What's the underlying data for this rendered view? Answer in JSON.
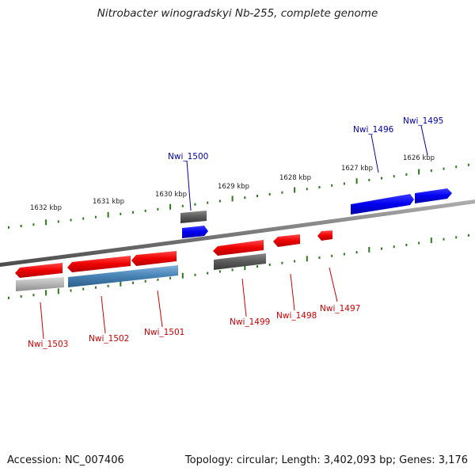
{
  "title": "Nitrobacter winogradskyi Nb-255, complete genome",
  "footer": {
    "accession": "Accession: NC_007406",
    "summary": "Topology: circular; Length: 3,402,093 bp; Genes: 3,176"
  },
  "ticks": [
    "1632 kbp",
    "1631 kbp",
    "1630 kbp",
    "1629 kbp",
    "1628 kbp",
    "1627 kbp",
    "1626 kbp"
  ],
  "genes": {
    "forward": [
      {
        "label": "Nwi_1500",
        "color": "#0000aa"
      },
      {
        "label": "Nwi_1496",
        "color": "#0000aa"
      },
      {
        "label": "Nwi_1495",
        "color": "#0000aa"
      }
    ],
    "reverse": [
      {
        "label": "Nwi_1503",
        "color": "#cc0000"
      },
      {
        "label": "Nwi_1502",
        "color": "#cc0000"
      },
      {
        "label": "Nwi_1501",
        "color": "#cc0000"
      },
      {
        "label": "Nwi_1499",
        "color": "#cc0000"
      },
      {
        "label": "Nwi_1498",
        "color": "#cc0000"
      },
      {
        "label": "Nwi_1497",
        "color": "#cc0000"
      }
    ]
  },
  "colors": {
    "cds_forward": "#0000ee",
    "cds_reverse": "#ee0000",
    "rna_gray": "#555555",
    "rna_light": "#aaaaaa",
    "rna_steel": "#4682b4",
    "tick": "#2a7a1a",
    "backbone": "#777777"
  }
}
